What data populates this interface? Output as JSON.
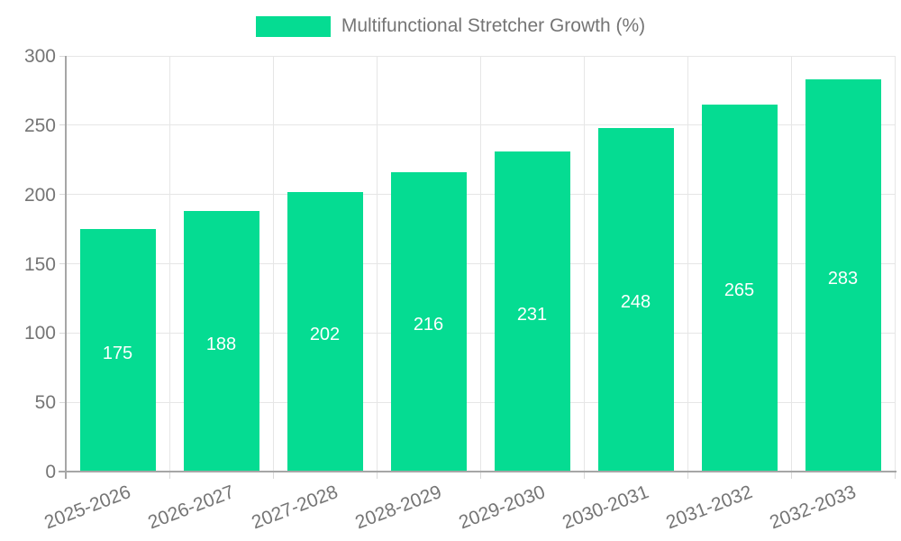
{
  "chart_data": {
    "type": "bar",
    "title": "Multifunctional Stretcher Growth (%)",
    "categories": [
      "2025-2026",
      "2026-2027",
      "2027-2028",
      "2028-2029",
      "2029-2030",
      "2030-2031",
      "2031-2032",
      "2032-2033"
    ],
    "values": [
      175,
      188,
      202,
      216,
      231,
      248,
      265,
      283
    ],
    "xlabel": "",
    "ylabel": "",
    "ylim": [
      0,
      300
    ],
    "yticks": [
      0,
      50,
      100,
      150,
      200,
      250,
      300
    ],
    "grid": true,
    "value_labels_visible": true,
    "value_label_position": "center",
    "x_label_rotation_deg": -21,
    "legend": {
      "position": "top",
      "entries": [
        "Multifunctional Stretcher Growth (%)"
      ]
    },
    "colors": {
      "bar": "#05DC92",
      "value_label": "#FFFFFF",
      "axis_text": "#757575",
      "axis_line": "#A6A6A6",
      "gridline": "#E6E6E6",
      "tick_line": "#D9D9D9",
      "background": "#FFFFFF"
    }
  }
}
